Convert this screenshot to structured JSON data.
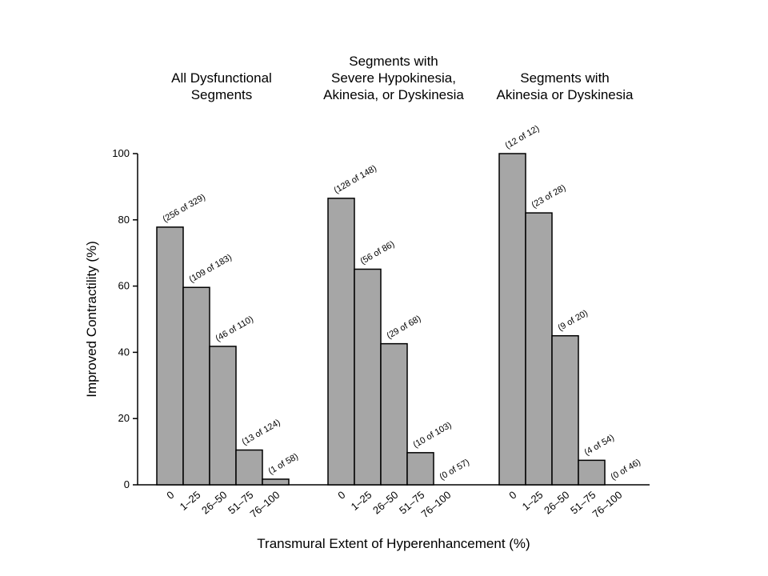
{
  "chart_data": {
    "type": "bar",
    "ylabel": "Improved Contractility (%)",
    "xlabel": "Transmural Extent of Hyperenhancement (%)",
    "ylim": [
      0,
      100
    ],
    "yticks": [
      "0",
      "20",
      "40",
      "60",
      "80",
      "100"
    ],
    "bar_color": "#a6a6a6",
    "grid": false,
    "panels": [
      {
        "title_lines": [
          "All Dysfunctional",
          "Segments"
        ],
        "categories": [
          "0",
          "1–25",
          "26–50",
          "51–75",
          "76–100"
        ],
        "values": [
          77.8,
          59.6,
          41.8,
          10.5,
          1.7
        ],
        "labels": [
          "(256 of 329)",
          "(109 of 183)",
          "(46 of 110)",
          "(13 of 124)",
          "(1 of 58)"
        ]
      },
      {
        "title_lines": [
          "Segments with",
          "Severe Hypokinesia,",
          "Akinesia, or Dyskinesia"
        ],
        "categories": [
          "0",
          "1–25",
          "26–50",
          "51–75",
          "76–100"
        ],
        "values": [
          86.5,
          65.1,
          42.6,
          9.7,
          0
        ],
        "labels": [
          "(128 of 148)",
          "(56 of 86)",
          "(29 of 68)",
          "(10 of 103)",
          "(0 of 57)"
        ]
      },
      {
        "title_lines": [
          "Segments with",
          "Akinesia or Dyskinesia"
        ],
        "categories": [
          "0",
          "1–25",
          "26–50",
          "51–75",
          "76–100"
        ],
        "values": [
          100,
          82.1,
          45,
          7.4,
          0
        ],
        "labels": [
          "(12 of 12)",
          "(23 of 28)",
          "(9 of 20)",
          "(4 of 54)",
          "(0 of 46)"
        ]
      }
    ]
  }
}
